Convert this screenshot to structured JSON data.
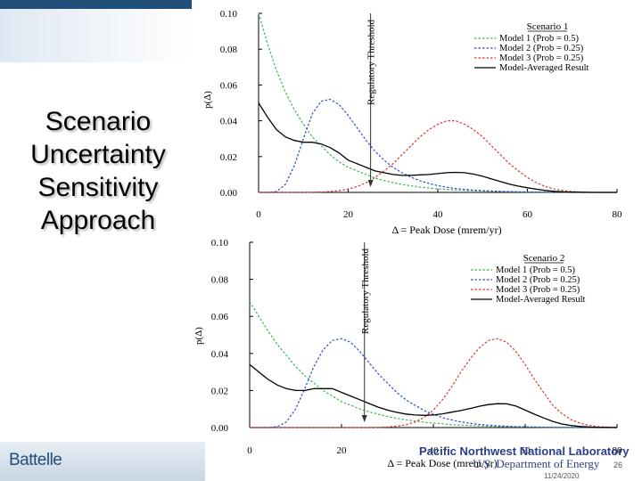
{
  "slide": {
    "title_lines": [
      "Scenario",
      "Uncertainty",
      "Sensitivity",
      "Approach"
    ],
    "logo_left": "Battelle",
    "logo_right_1": "Pacific Northwest National Laboratory",
    "logo_right_2": "U.S. Department of Energy",
    "page_number": "26",
    "date": "11/24/2020"
  },
  "colors": {
    "model1": "#3cb44b",
    "model2": "#2b4bd8",
    "model3": "#e0342b",
    "averaged": "#000000",
    "threshold": "#000000"
  },
  "chart_data": [
    {
      "type": "line",
      "legend_title": "Scenario 1",
      "ylabel": "p(Δ)",
      "xlabel": "Δ = Peak Dose (mrem/yr)",
      "xlim": [
        0,
        80
      ],
      "ylim": [
        0,
        0.1
      ],
      "xticks": [
        "0",
        "20",
        "40",
        "60",
        "80"
      ],
      "yticks": [
        "0.00",
        "0.02",
        "0.04",
        "0.06",
        "0.08",
        "0.10"
      ],
      "threshold": {
        "x": 25,
        "label": "Regulatory Threshold"
      },
      "legend_position": "top-right",
      "x": [
        0,
        2,
        4,
        6,
        8,
        10,
        12,
        14,
        16,
        18,
        20,
        22,
        24,
        26,
        28,
        30,
        32,
        34,
        36,
        38,
        40,
        42,
        44,
        46,
        48,
        50,
        52,
        54,
        56,
        58,
        60,
        62,
        64,
        66,
        68,
        70,
        72,
        74,
        76,
        78,
        80
      ],
      "series": [
        {
          "name": "Model 1 (Prob = 0.5)",
          "style": "dotted",
          "color_key": "model1",
          "values": [
            0.1,
            0.083,
            0.068,
            0.056,
            0.046,
            0.038,
            0.031,
            0.026,
            0.021,
            0.017,
            0.014,
            0.012,
            0.01,
            0.008,
            0.0066,
            0.0054,
            0.0045,
            0.0037,
            0.003,
            0.0025,
            0.002,
            0.0017,
            0.0014,
            0.0011,
            0.0009,
            0.0008,
            0.0006,
            0.0005,
            0.0004,
            0.0003,
            0.0003,
            0.0002,
            0.0002,
            0.0002,
            0.0001,
            0.0001,
            0.0001,
            0.0001,
            0.0,
            0.0,
            0.0
          ]
        },
        {
          "name": "Model 2 (Prob = 0.25)",
          "style": "dotted",
          "color_key": "model2",
          "values": [
            0.0,
            0.0,
            0.0005,
            0.0045,
            0.015,
            0.03,
            0.044,
            0.051,
            0.052,
            0.049,
            0.043,
            0.036,
            0.029,
            0.023,
            0.018,
            0.014,
            0.011,
            0.0085,
            0.0065,
            0.005,
            0.0038,
            0.0029,
            0.0022,
            0.0017,
            0.0013,
            0.001,
            0.0008,
            0.0006,
            0.0004,
            0.0003,
            0.0002,
            0.0002,
            0.0001,
            0.0001,
            0.0001,
            0.0,
            0.0,
            0.0,
            0.0,
            0.0,
            0.0
          ]
        },
        {
          "name": "Model 3 (Prob = 0.25)",
          "style": "dotted",
          "color_key": "model3",
          "values": [
            0.0,
            0.0,
            0.0,
            0.0,
            0.0,
            0.0,
            0.0001,
            0.0002,
            0.0005,
            0.001,
            0.0019,
            0.0033,
            0.0054,
            0.0083,
            0.012,
            0.016,
            0.021,
            0.026,
            0.031,
            0.035,
            0.038,
            0.04,
            0.04,
            0.038,
            0.035,
            0.031,
            0.026,
            0.021,
            0.016,
            0.012,
            0.0083,
            0.0054,
            0.0033,
            0.0019,
            0.001,
            0.0005,
            0.0002,
            0.0001,
            0.0,
            0.0,
            0.0
          ]
        },
        {
          "name": "Model-Averaged Result",
          "style": "solid",
          "color_key": "averaged",
          "values": [
            0.05,
            0.042,
            0.035,
            0.031,
            0.029,
            0.028,
            0.028,
            0.027,
            0.025,
            0.022,
            0.018,
            0.016,
            0.014,
            0.012,
            0.011,
            0.01,
            0.0095,
            0.0095,
            0.0098,
            0.01,
            0.0105,
            0.011,
            0.0112,
            0.011,
            0.0102,
            0.009,
            0.0075,
            0.006,
            0.0046,
            0.0035,
            0.0026,
            0.0018,
            0.0011,
            0.0006,
            0.0003,
            0.0002,
            0.0001,
            0.0,
            0.0,
            0.0,
            0.0
          ]
        }
      ]
    },
    {
      "type": "line",
      "legend_title": "Scenario 2",
      "ylabel": "p(Δ)",
      "xlabel": "Δ = Peak Dose (mrem/yr)",
      "xlim": [
        0,
        80
      ],
      "ylim": [
        0,
        0.1
      ],
      "xticks": [
        "0",
        "20",
        "40",
        "60",
        "80"
      ],
      "yticks": [
        "0.00",
        "0.02",
        "0.04",
        "0.06",
        "0.08",
        "0.10"
      ],
      "threshold": {
        "x": 25,
        "label": "Regulatory Threshold"
      },
      "legend_position": "top-right",
      "x": [
        0,
        2,
        4,
        6,
        8,
        10,
        12,
        14,
        16,
        18,
        20,
        22,
        24,
        26,
        28,
        30,
        32,
        34,
        36,
        38,
        40,
        42,
        44,
        46,
        48,
        50,
        52,
        54,
        56,
        58,
        60,
        62,
        64,
        66,
        68,
        70,
        72,
        74,
        76,
        78,
        80
      ],
      "series": [
        {
          "name": "Model 1 (Prob = 0.5)",
          "style": "dotted",
          "color_key": "model1",
          "values": [
            0.068,
            0.06,
            0.052,
            0.045,
            0.039,
            0.033,
            0.028,
            0.024,
            0.02,
            0.017,
            0.014,
            0.012,
            0.01,
            0.0085,
            0.0072,
            0.006,
            0.005,
            0.0042,
            0.0035,
            0.0029,
            0.0024,
            0.002,
            0.0016,
            0.0013,
            0.0011,
            0.0009,
            0.0007,
            0.0006,
            0.0005,
            0.0004,
            0.0003,
            0.0003,
            0.0002,
            0.0002,
            0.0001,
            0.0001,
            0.0001,
            0.0,
            0.0,
            0.0,
            0.0
          ]
        },
        {
          "name": "Model 2 (Prob = 0.25)",
          "style": "dotted",
          "color_key": "model2",
          "values": [
            0.0,
            0.0,
            0.0,
            0.0005,
            0.003,
            0.01,
            0.021,
            0.033,
            0.042,
            0.047,
            0.048,
            0.046,
            0.041,
            0.035,
            0.029,
            0.024,
            0.019,
            0.015,
            0.012,
            0.0092,
            0.0071,
            0.0054,
            0.0041,
            0.0031,
            0.0023,
            0.0017,
            0.0013,
            0.0009,
            0.0007,
            0.0005,
            0.0004,
            0.0003,
            0.0002,
            0.0001,
            0.0001,
            0.0001,
            0.0,
            0.0,
            0.0,
            0.0,
            0.0
          ]
        },
        {
          "name": "Model 3 (Prob = 0.25)",
          "style": "dotted",
          "color_key": "model3",
          "values": [
            0.0,
            0.0,
            0.0,
            0.0,
            0.0,
            0.0,
            0.0,
            0.0,
            0.0,
            0.0,
            0.0,
            0.0,
            0.0,
            0.0,
            0.0001,
            0.0003,
            0.0007,
            0.0015,
            0.003,
            0.0055,
            0.0094,
            0.015,
            0.022,
            0.03,
            0.037,
            0.043,
            0.047,
            0.048,
            0.046,
            0.041,
            0.034,
            0.026,
            0.019,
            0.012,
            0.0075,
            0.0043,
            0.0023,
            0.0011,
            0.0005,
            0.0002,
            0.0001
          ]
        },
        {
          "name": "Model-Averaged Result",
          "style": "solid",
          "color_key": "averaged",
          "values": [
            0.034,
            0.03,
            0.026,
            0.023,
            0.021,
            0.02,
            0.02,
            0.021,
            0.021,
            0.021,
            0.019,
            0.017,
            0.015,
            0.013,
            0.011,
            0.0094,
            0.0082,
            0.0073,
            0.0068,
            0.0066,
            0.0068,
            0.0074,
            0.0083,
            0.0092,
            0.0103,
            0.0115,
            0.0124,
            0.0129,
            0.0128,
            0.0116,
            0.0094,
            0.0072,
            0.0052,
            0.0033,
            0.0019,
            0.0011,
            0.0006,
            0.0003,
            0.0001,
            0.0001,
            0.0
          ]
        }
      ]
    }
  ]
}
